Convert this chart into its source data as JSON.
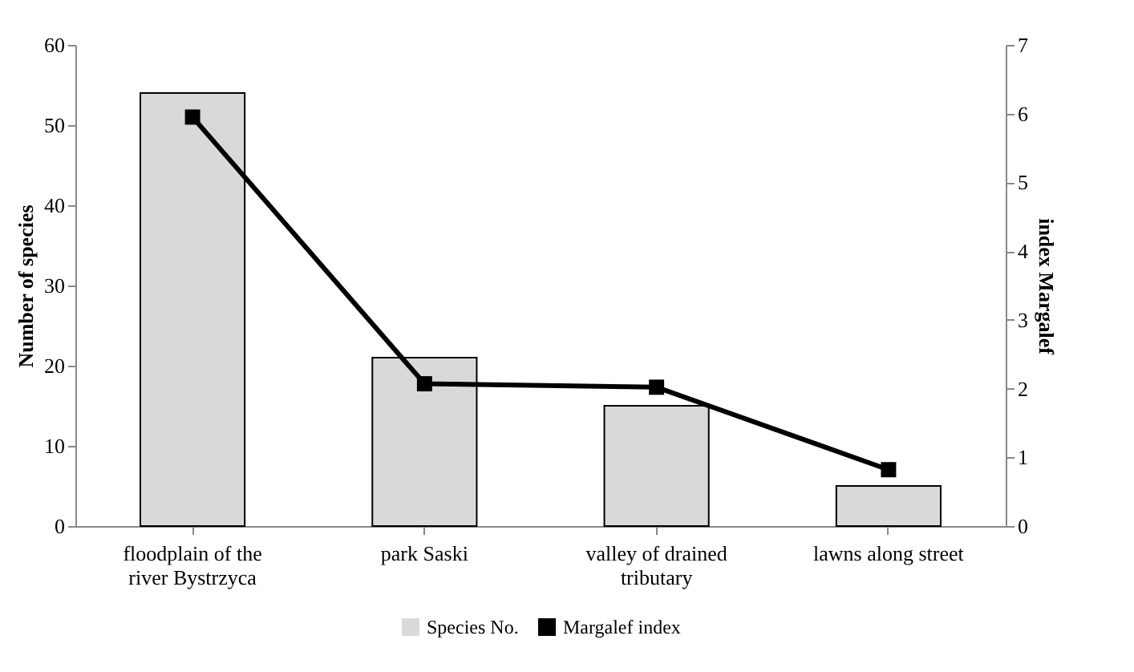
{
  "chart_data": {
    "type": "bar",
    "categories": [
      "floodplain of the river Bystrzyca",
      "park Saski",
      "valley of drained tributary",
      "lawns along street"
    ],
    "series": [
      {
        "name": "Species No.",
        "color": "#d9d9d9",
        "values": [
          54,
          21,
          15,
          5
        ]
      },
      {
        "name": "Margalef index",
        "type": "line",
        "axis": "y2",
        "color": "#000000",
        "marker": "square",
        "values": [
          5.95,
          2.07,
          2.02,
          0.82
        ]
      }
    ],
    "ylabel": "Number of species",
    "y2label": "index Margalef",
    "ylim": [
      0,
      60
    ],
    "yticks": [
      0,
      10,
      20,
      30,
      40,
      50,
      60
    ],
    "y2lim": [
      0,
      7
    ],
    "y2ticks": [
      0,
      1,
      2,
      3,
      4,
      5,
      6,
      7
    ],
    "grid": false,
    "legend": "bottom"
  }
}
